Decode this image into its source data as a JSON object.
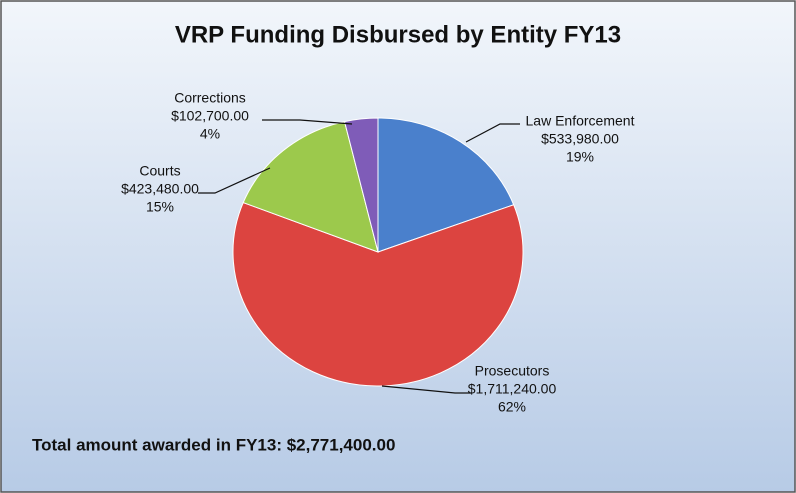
{
  "chart_data": {
    "type": "pie",
    "title": "VRP Funding Disbursed by Entity FY13",
    "categories": [
      "Law Enforcement",
      "Prosecutors",
      "Courts",
      "Corrections"
    ],
    "values": [
      533980,
      1711240,
      423480,
      102700
    ],
    "value_labels": [
      "$533,980.00",
      "$1,711,240.00",
      "$423,480.00",
      "$102,700.00"
    ],
    "percent_labels": [
      "19%",
      "62%",
      "15%",
      "4%"
    ],
    "colors": [
      "#4a80cc",
      "#dc4440",
      "#9cc94c",
      "#7f5cb8"
    ],
    "annotation": "Total amount awarded in FY13: $2,771,400.00"
  }
}
